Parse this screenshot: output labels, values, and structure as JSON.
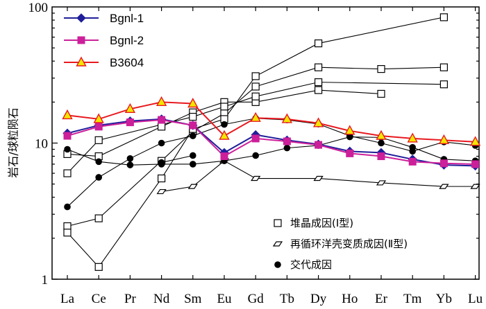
{
  "chart_data": {
    "type": "line",
    "yscale": "log",
    "ylim": [
      1,
      100
    ],
    "ylabel": "岩石/球粒陨石",
    "xlabel": "",
    "title": "",
    "categories": [
      "La",
      "Ce",
      "Pr",
      "Nd",
      "Sm",
      "Eu",
      "Gd",
      "Tb",
      "Dy",
      "Ho",
      "Er",
      "Tm",
      "Yb",
      "Lu"
    ],
    "y_ticks": [
      {
        "value": 1,
        "label": "1"
      },
      {
        "value": 10,
        "label": "10"
      },
      {
        "value": 100,
        "label": "100"
      }
    ],
    "legend_top": {
      "placement": "top-left",
      "entries": [
        {
          "name": "Bgnl-1",
          "color": "#1f1f9a",
          "marker": "diamond"
        },
        {
          "name": "Bgnl-2",
          "color": "#cc1f9a",
          "marker": "square"
        },
        {
          "name": "B3604",
          "color": "#e8191f",
          "marker": "triangle"
        }
      ]
    },
    "legend_bottom": {
      "placement": "bottom-right",
      "entries": [
        {
          "label": "堆晶成因(Ⅰ型)",
          "marker": "open-square"
        },
        {
          "label": "再循环洋壳变质成因(Ⅱ型)",
          "marker": "open-parallelogram"
        },
        {
          "label": "交代成因",
          "marker": "filled-circle"
        }
      ]
    },
    "series": [
      {
        "name": "Bgnl-1",
        "color": "#1f1f9a",
        "marker": "diamond",
        "values": [
          11.8,
          13.5,
          14.5,
          15.0,
          13.5,
          8.5,
          11.5,
          10.5,
          9.8,
          8.7,
          8.5,
          7.6,
          6.9,
          6.8
        ]
      },
      {
        "name": "Bgnl-2",
        "color": "#cc1f9a",
        "marker": "square",
        "values": [
          11.3,
          13.2,
          14.2,
          14.8,
          13.5,
          8.0,
          10.8,
          10.3,
          9.7,
          8.4,
          8.0,
          7.3,
          7.1,
          7.0
        ]
      },
      {
        "name": "B3604",
        "color": "#e8191f",
        "marker": "triangle",
        "values": [
          16.0,
          15.0,
          17.8,
          20.0,
          19.5,
          11.3,
          15.3,
          15.0,
          14.0,
          12.3,
          11.3,
          10.8,
          10.5,
          10.2
        ]
      },
      {
        "group": "type1",
        "marker": "open-square",
        "values": [
          8.3,
          8.0,
          null,
          13.2,
          16.8,
          20.0,
          20.0,
          null,
          24.5,
          null,
          23.0,
          null,
          null,
          null
        ]
      },
      {
        "group": "type1",
        "marker": "open-square",
        "values": [
          6.0,
          10.5,
          null,
          null,
          15.6,
          18.5,
          22.0,
          null,
          28.0,
          null,
          null,
          null,
          27.0,
          null
        ]
      },
      {
        "group": "type1",
        "marker": "open-square",
        "values": [
          2.45,
          2.8,
          null,
          7.4,
          12.2,
          16.5,
          26.0,
          null,
          36.0,
          null,
          35.0,
          null,
          36.0,
          null
        ]
      },
      {
        "group": "type1",
        "marker": "open-square",
        "values": [
          2.2,
          1.23,
          null,
          5.5,
          12.7,
          15.0,
          31.0,
          null,
          54.0,
          null,
          null,
          null,
          84.0,
          null
        ]
      },
      {
        "group": "type2",
        "marker": "open-parallelogram",
        "values": [
          null,
          null,
          null,
          4.4,
          4.8,
          7.4,
          5.5,
          null,
          5.5,
          null,
          5.1,
          null,
          4.8,
          4.8
        ]
      },
      {
        "group": "metasomatic",
        "marker": "filled-circle",
        "values": [
          9.0,
          7.3,
          6.9,
          7.0,
          7.0,
          7.4,
          8.1,
          9.2,
          9.6,
          11.1,
          11.0,
          9.3,
          7.6,
          7.4
        ]
      },
      {
        "group": "metasomatic",
        "marker": "filled-circle",
        "values": [
          3.4,
          5.6,
          7.7,
          10.0,
          11.3,
          13.7,
          15.2,
          14.8,
          13.8,
          11.3,
          10.0,
          8.7,
          10.2,
          9.6
        ]
      },
      {
        "group": "metasomatic",
        "marker": "filled-circle",
        "values": [
          null,
          null,
          null,
          7.2,
          8.1,
          null,
          null,
          null,
          null,
          null,
          null,
          null,
          null,
          null
        ]
      }
    ]
  }
}
